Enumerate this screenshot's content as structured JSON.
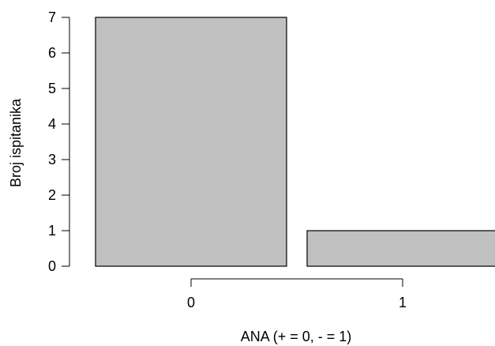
{
  "chart_data": {
    "type": "bar",
    "title": "",
    "xlabel": "ANA (+ = 0, - = 1)",
    "ylabel": "Broj ispitanika",
    "categories": [
      "0",
      "1"
    ],
    "values": [
      7,
      1
    ],
    "ylim": [
      0,
      7
    ],
    "yticks": [
      0,
      1,
      2,
      3,
      4,
      5,
      6,
      7
    ],
    "grid": false,
    "legend": "none",
    "bar_color": "#c0c0c0",
    "bar_border_color": "#000000"
  }
}
